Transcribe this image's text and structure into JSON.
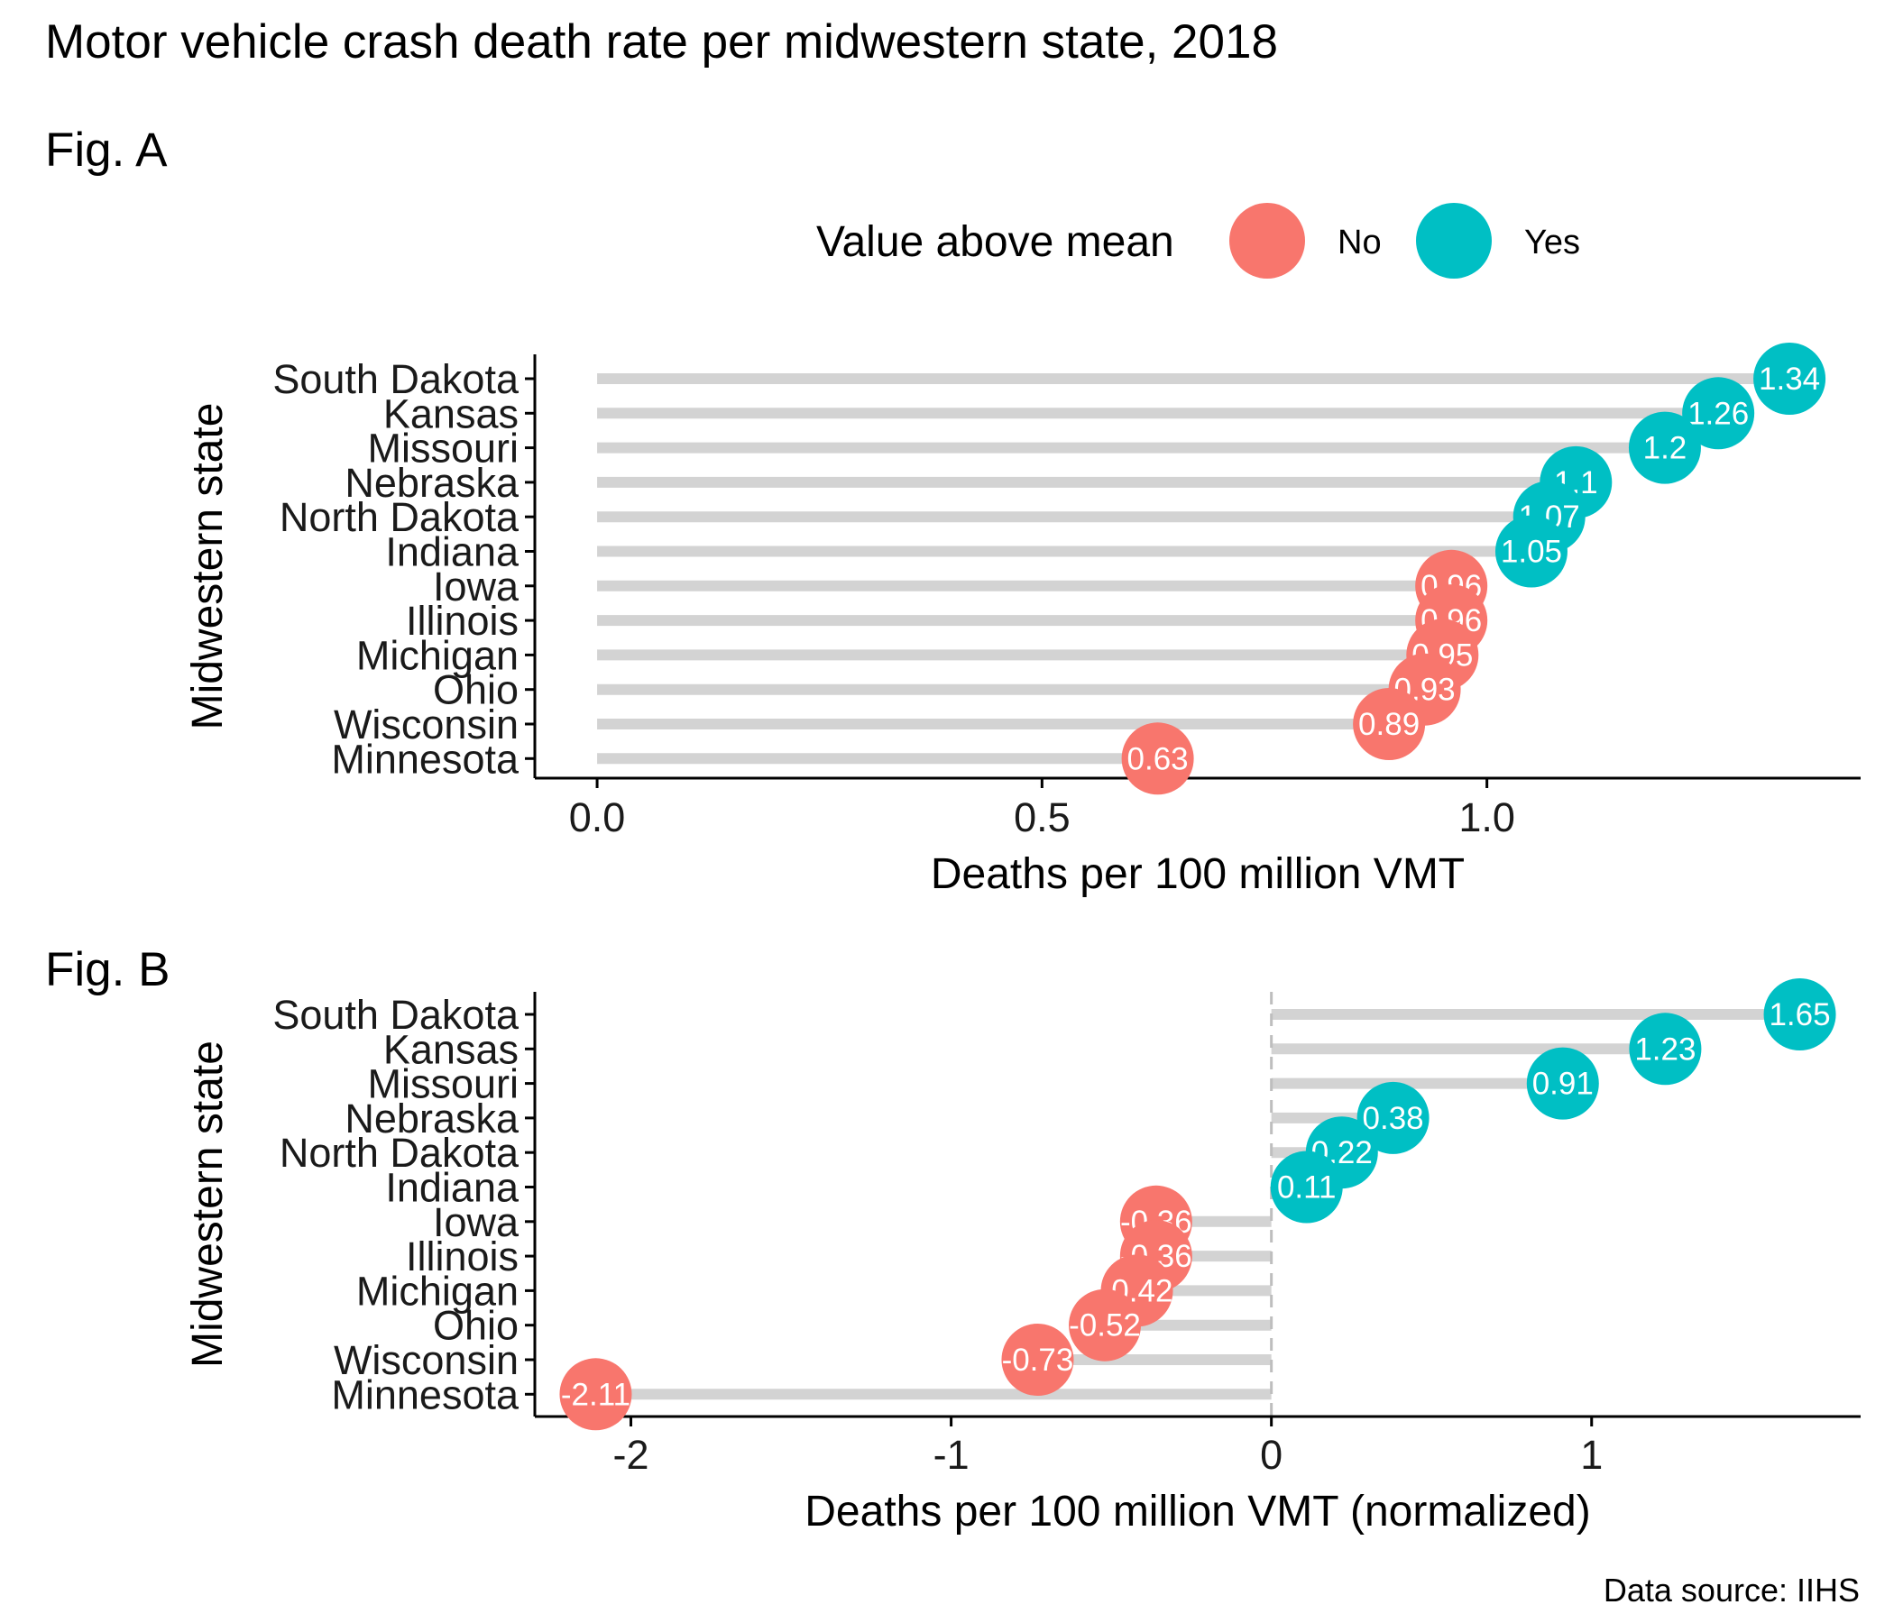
{
  "title": "Motor vehicle crash death rate per midwestern state, 2018",
  "caption": "Data source: IIHS",
  "colors": {
    "below": "#F8766D",
    "above": "#00BFC4",
    "segment": "#D3D3D3",
    "axis": "#000000"
  },
  "legend": {
    "title": "Value above mean",
    "items": [
      {
        "label": "No",
        "color": "#F8766D"
      },
      {
        "label": "Yes",
        "color": "#00BFC4"
      }
    ]
  },
  "chart_data": [
    {
      "type": "lollipop",
      "panel_label": "Fig. A",
      "xlabel": "Deaths per 100 million VMT",
      "ylabel": "Midwestern state",
      "xlim": [
        -0.07,
        1.42
      ],
      "xticks": [
        0.0,
        0.5,
        1.0
      ],
      "xtick_labels": [
        "0.0",
        "0.5",
        "1.0"
      ],
      "baseline": 0,
      "dashed_baseline": false,
      "categories": [
        "South Dakota",
        "Kansas",
        "Missouri",
        "Nebraska",
        "North Dakota",
        "Indiana",
        "Iowa",
        "Illinois",
        "Michigan",
        "Ohio",
        "Wisconsin",
        "Minnesota"
      ],
      "values": [
        1.34,
        1.26,
        1.2,
        1.1,
        1.07,
        1.05,
        0.96,
        0.96,
        0.95,
        0.93,
        0.89,
        0.63
      ],
      "labels": [
        "1.34",
        "1.26",
        "1.2",
        "1.1",
        "1.07",
        "1.05",
        "0.96",
        "0.96",
        "0.95",
        "0.93",
        "0.89",
        "0.63"
      ],
      "above_mean": [
        "Yes",
        "Yes",
        "Yes",
        "Yes",
        "Yes",
        "Yes",
        "No",
        "No",
        "No",
        "No",
        "No",
        "No"
      ],
      "grid": false
    },
    {
      "type": "lollipop",
      "panel_label": "Fig. B",
      "xlabel": "Deaths per 100 million VMT (normalized)",
      "ylabel": "Midwestern state",
      "xlim": [
        -2.3,
        1.84
      ],
      "xticks": [
        -2,
        -1,
        0,
        1
      ],
      "xtick_labels": [
        "-2",
        "-1",
        "0",
        "1"
      ],
      "baseline": 0,
      "dashed_baseline": true,
      "categories": [
        "South Dakota",
        "Kansas",
        "Missouri",
        "Nebraska",
        "North Dakota",
        "Indiana",
        "Iowa",
        "Illinois",
        "Michigan",
        "Ohio",
        "Wisconsin",
        "Minnesota"
      ],
      "values": [
        1.65,
        1.23,
        0.91,
        0.38,
        0.22,
        0.11,
        -0.36,
        -0.36,
        -0.42,
        -0.52,
        -0.73,
        -2.11
      ],
      "labels": [
        "1.65",
        "1.23",
        "0.91",
        "0.38",
        "0.22",
        "0.11",
        "-0.36",
        "-0.36",
        "-0.42",
        "-0.52",
        "-0.73",
        "-2.11"
      ],
      "above_mean": [
        "Yes",
        "Yes",
        "Yes",
        "Yes",
        "Yes",
        "Yes",
        "No",
        "No",
        "No",
        "No",
        "No",
        "No"
      ],
      "grid": false
    }
  ]
}
